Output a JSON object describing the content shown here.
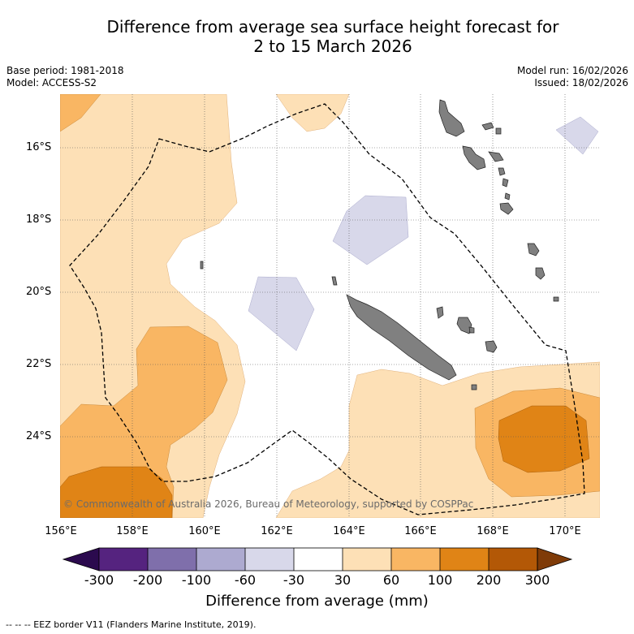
{
  "title": {
    "line1": "Difference from average sea surface height forecast for",
    "line2": "2 to 15 March 2026"
  },
  "meta": {
    "base_period": "Base period: 1981-2018",
    "model": "Model: ACCESS-S2",
    "model_run": "Model run: 16/02/2026",
    "issued": "Issued: 18/02/2026"
  },
  "map": {
    "lat_labels": [
      "16°S",
      "18°S",
      "20°S",
      "22°S",
      "24°S"
    ],
    "lon_labels": [
      "156°E",
      "158°E",
      "160°E",
      "162°E",
      "164°E",
      "166°E",
      "168°E",
      "170°E"
    ],
    "copyright": "© Commonwealth of Australia 2026, Bureau of Meteorology, supported by COSPPac"
  },
  "colorbar": {
    "title": "Difference from average (mm)",
    "ticks": [
      "-300",
      "-200",
      "-100",
      "-60",
      "-30",
      "30",
      "60",
      "100",
      "200",
      "300"
    ],
    "colors": [
      "#2b0a4e",
      "#55237f",
      "#7f6fab",
      "#adaad0",
      "#d8d8ea",
      "#ffffff",
      "#fde0b6",
      "#f9b663",
      "#e08416",
      "#b35806",
      "#7f3b08"
    ]
  },
  "footer": {
    "legend": "-- -- -- EEZ border V11 (Flanders Marine Institute, 2019)."
  }
}
